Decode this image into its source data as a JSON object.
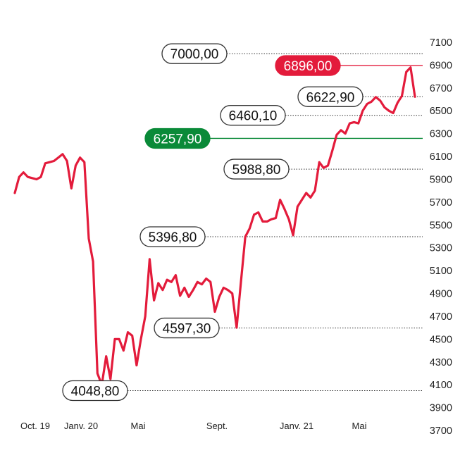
{
  "chart_data": {
    "type": "line",
    "title": "",
    "xlabel": "",
    "ylabel": "",
    "ylim": [
      3700,
      7100
    ],
    "y_ticks": [
      "7100",
      "6900",
      "6700",
      "6500",
      "6300",
      "6100",
      "5900",
      "5700",
      "5500",
      "5300",
      "5100",
      "4900",
      "4700",
      "4500",
      "4300",
      "4100",
      "3900",
      "3700"
    ],
    "x_ticks": [
      "Oct. 19",
      "Janv. 20",
      "Mai",
      "Sept.",
      "Janv. 21",
      "Mai"
    ],
    "grid": false,
    "legend": "none",
    "colors": {
      "line": "#e31b3b",
      "highlight_red": "#e31b3b",
      "highlight_green": "#0a8a38",
      "tick_text": "#222222"
    },
    "series": [
      {
        "values": [
          5780,
          5920,
          5960,
          5920,
          5910,
          5900,
          5920,
          6040,
          6050,
          6060,
          6090,
          6120,
          6060,
          5820,
          6020,
          6090,
          6050,
          5380,
          5180,
          4200,
          4100,
          4350,
          4150,
          4500,
          4500,
          4400,
          4560,
          4530,
          4270,
          4500,
          4700,
          5200,
          4840,
          4990,
          4930,
          5020,
          5000,
          5060,
          4880,
          4950,
          4870,
          4930,
          5000,
          4980,
          5030,
          5000,
          4740,
          4870,
          4950,
          4930,
          4900,
          4600,
          5000,
          5396.8,
          5470,
          5590,
          5610,
          5530,
          5530,
          5550,
          5560,
          5720,
          5640,
          5550,
          5410,
          5660,
          5720,
          5780,
          5740,
          5800,
          6050,
          6000,
          6020,
          6150,
          6290,
          6330,
          6300,
          6390,
          6400,
          6390,
          6500,
          6560,
          6580,
          6620,
          6590,
          6530,
          6500,
          6480,
          6570,
          6630,
          6840,
          6880,
          6622.9
        ]
      }
    ],
    "annotations": [
      {
        "text": "7000,00",
        "value": 7000,
        "style": "outline"
      },
      {
        "text": "6896,00",
        "value": 6896,
        "style": "red"
      },
      {
        "text": "6622,90",
        "value": 6622.9,
        "style": "outline"
      },
      {
        "text": "6460,10",
        "value": 6460.1,
        "style": "outline"
      },
      {
        "text": "6257,90",
        "value": 6257.9,
        "style": "green"
      },
      {
        "text": "5988,80",
        "value": 5988.8,
        "style": "outline"
      },
      {
        "text": "5396,80",
        "value": 5396.8,
        "style": "outline"
      },
      {
        "text": "4597,30",
        "value": 4597.3,
        "style": "outline"
      },
      {
        "text": "4048,80",
        "value": 4048.8,
        "style": "outline"
      }
    ]
  }
}
